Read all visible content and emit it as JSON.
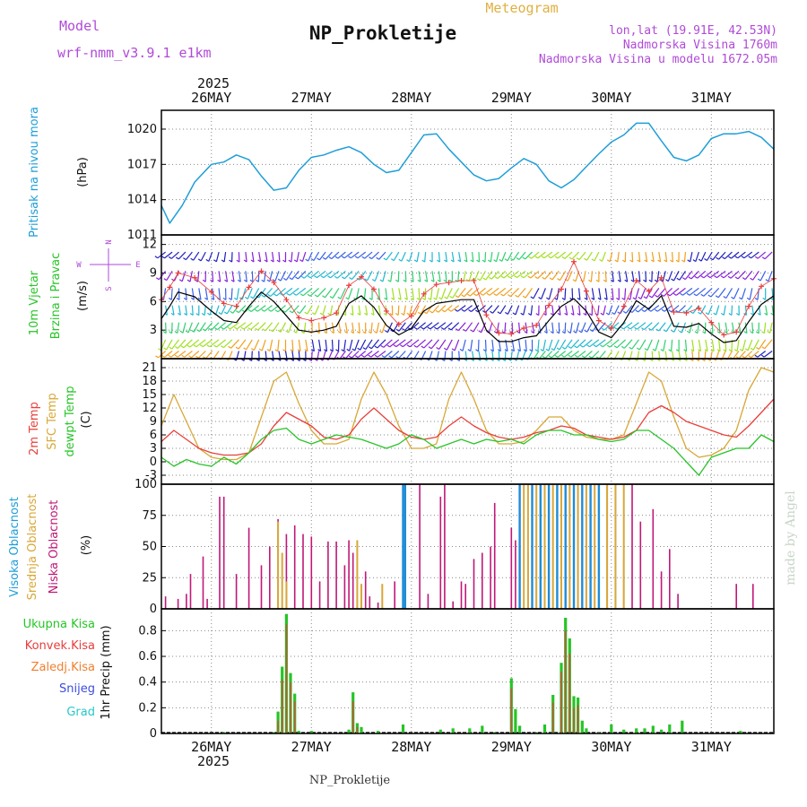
{
  "header": {
    "model_label": "Model",
    "model_name": "wrf-nmm_v3.9.1  e1km",
    "title": "NP_Prokletije",
    "meteogram": "Meteogram",
    "lonlat": "lon,lat (19.91E, 42.53N)",
    "elevation": "Nadmorska Visina 1760m",
    "model_elevation": "Nadmorska Visina u modelu 1672.05m",
    "footer": "NP_Prokletije",
    "credit": "made by Angel"
  },
  "colors": {
    "pressure": "#1e9ed8",
    "temp2m": "#e8403a",
    "sfc": "#d8a838",
    "dewpt": "#28c428",
    "high_cloud": "#1e8cd8",
    "mid_cloud": "#d8a838",
    "low_cloud": "#c01878",
    "precip": "#26c426",
    "conv": "#e83c3c",
    "wind_speed": "#000000",
    "gust": "#e83c3c"
  },
  "x_axis": {
    "year": "2025",
    "days": [
      "26MAY",
      "27MAY",
      "28MAY",
      "29MAY",
      "30MAY",
      "31MAY"
    ],
    "range_hours": [
      -12,
      135
    ]
  },
  "chart_data": [
    {
      "type": "line",
      "panel": "pressure",
      "labels": [
        "Pritisak na nivou mora",
        "(hPa)"
      ],
      "yticks": [
        1011,
        1014,
        1017,
        1020
      ],
      "ylim": [
        1011,
        1021.6
      ],
      "series": [
        {
          "x": [
            -12,
            -10,
            -7,
            -4,
            0,
            3,
            6,
            9,
            12,
            15,
            18,
            21,
            24,
            27,
            30,
            33,
            36,
            39,
            42,
            45,
            48,
            51,
            54,
            57,
            60,
            63,
            66,
            69,
            72,
            75,
            78,
            81,
            84,
            87,
            90,
            93,
            96,
            99,
            102,
            105,
            108,
            111,
            114,
            117,
            120,
            123,
            126,
            129,
            132,
            135
          ],
          "y": [
            1013.5,
            1012,
            1013.5,
            1015.5,
            1017,
            1017.2,
            1017.8,
            1017.4,
            1016,
            1014.8,
            1015,
            1016.5,
            1017.6,
            1017.8,
            1018.2,
            1018.5,
            1018,
            1017,
            1016.3,
            1016.5,
            1018,
            1019.5,
            1019.6,
            1018.3,
            1017.2,
            1016.1,
            1015.6,
            1015.8,
            1016.7,
            1017.5,
            1017,
            1015.6,
            1015,
            1015.7,
            1016.8,
            1017.9,
            1018.9,
            1019.5,
            1020.5,
            1020.5,
            1019,
            1017.6,
            1017.3,
            1017.8,
            1019.2,
            1019.6,
            1019.6,
            1019.8,
            1019.3,
            1018.3
          ]
        }
      ]
    },
    {
      "type": "line",
      "panel": "wind",
      "labels": [
        "10m Vjetar",
        "Brzina i Pravac",
        "(m/s)"
      ],
      "compass": {
        "n": "N",
        "w": "W",
        "e": "E",
        "s": "S"
      },
      "yticks": [
        3,
        6,
        9,
        12
      ],
      "ylim": [
        0,
        13
      ],
      "series": [
        {
          "name": "speed",
          "x": [
            -12,
            -10,
            -8,
            -4,
            0,
            3,
            6,
            9,
            12,
            15,
            18,
            21,
            24,
            27,
            30,
            33,
            36,
            39,
            42,
            45,
            48,
            51,
            54,
            57,
            60,
            63,
            66,
            69,
            72,
            75,
            78,
            81,
            84,
            87,
            90,
            93,
            96,
            99,
            102,
            105,
            108,
            111,
            114,
            117,
            120,
            123,
            126,
            129,
            132,
            135
          ],
          "y": [
            4.2,
            5.5,
            7,
            6.5,
            5,
            4,
            3.8,
            5.5,
            7,
            6,
            4.5,
            3,
            2.8,
            3,
            3.4,
            5.8,
            6.6,
            5.4,
            3.5,
            2.5,
            3.2,
            5,
            5.8,
            6,
            6.2,
            6.2,
            3,
            1.8,
            1.8,
            2.2,
            2.4,
            4,
            5.5,
            6.3,
            5,
            2.8,
            2.2,
            3.8,
            6.1,
            5.2,
            6.6,
            3.4,
            3.3,
            3.7,
            2.6,
            1.7,
            1.9,
            3.9,
            5.7,
            6.6
          ]
        },
        {
          "name": "gust",
          "x": [
            -12,
            -10,
            -8,
            -4,
            0,
            3,
            6,
            9,
            12,
            15,
            18,
            21,
            24,
            27,
            30,
            33,
            36,
            39,
            42,
            45,
            48,
            51,
            54,
            57,
            60,
            63,
            66,
            69,
            72,
            75,
            78,
            81,
            84,
            87,
            90,
            93,
            96,
            99,
            102,
            105,
            108,
            111,
            114,
            117,
            120,
            123,
            126,
            129,
            132,
            135
          ],
          "y": [
            6.2,
            7.5,
            9,
            8.5,
            7,
            5.8,
            5.5,
            7.5,
            9.2,
            8,
            6.2,
            4.3,
            4,
            4.3,
            4.8,
            7.7,
            8.6,
            7.3,
            5,
            3.6,
            4.5,
            6.8,
            7.8,
            8,
            8.2,
            8.2,
            4.6,
            2.7,
            2.6,
            3.2,
            3.5,
            5.6,
            7.3,
            10.2,
            7.1,
            4,
            3.2,
            5.5,
            8.2,
            7.1,
            8.5,
            4.9,
            4.8,
            5.3,
            3.8,
            2.5,
            2.8,
            5.5,
            7.6,
            8.4
          ]
        }
      ]
    },
    {
      "type": "line",
      "panel": "temperature",
      "labels": [
        "2m Temp",
        "SFC Temp",
        "dewpt Temp",
        "(C)"
      ],
      "yticks": [
        -3,
        0,
        3,
        6,
        9,
        12,
        15,
        18,
        21
      ],
      "ylim": [
        -5,
        23
      ],
      "series": [
        {
          "name": "2m Temp",
          "x": [
            -12,
            -9,
            -6,
            -3,
            0,
            3,
            6,
            9,
            12,
            15,
            18,
            21,
            24,
            27,
            30,
            33,
            36,
            39,
            42,
            45,
            48,
            51,
            54,
            57,
            60,
            63,
            66,
            69,
            72,
            75,
            78,
            81,
            84,
            87,
            90,
            93,
            96,
            99,
            102,
            105,
            108,
            111,
            114,
            117,
            120,
            123,
            126,
            129,
            132,
            135
          ],
          "y": [
            4.5,
            7,
            5,
            3,
            2,
            1.5,
            1.5,
            2,
            4,
            8,
            11,
            9.5,
            8,
            5.5,
            5,
            6,
            9.5,
            12,
            9.5,
            7,
            5.5,
            5,
            5.5,
            8,
            10,
            8,
            6.5,
            5.5,
            5,
            5.5,
            6.5,
            7,
            8,
            7.5,
            6,
            5.5,
            5,
            5.5,
            7,
            11,
            12.5,
            11,
            9,
            8,
            7,
            6,
            5.5,
            8,
            11,
            14
          ]
        },
        {
          "name": "SFC Temp",
          "x": [
            -12,
            -9,
            -6,
            -3,
            0,
            3,
            6,
            9,
            12,
            15,
            18,
            21,
            24,
            27,
            30,
            33,
            36,
            39,
            42,
            45,
            48,
            51,
            54,
            57,
            60,
            63,
            66,
            69,
            72,
            75,
            78,
            81,
            84,
            87,
            90,
            93,
            96,
            99,
            102,
            105,
            108,
            111,
            114,
            117,
            120,
            123,
            126,
            129,
            132,
            135
          ],
          "y": [
            8,
            15,
            9,
            3,
            1,
            0.5,
            0.5,
            2,
            10,
            18,
            20,
            13,
            7,
            4,
            4,
            5,
            14,
            20,
            15,
            8,
            3,
            3,
            4,
            14,
            20,
            14,
            7,
            4,
            4,
            4.5,
            7,
            10,
            10,
            7,
            5.5,
            5,
            5,
            6,
            13,
            20,
            18,
            10,
            3,
            1,
            1.5,
            3,
            7,
            16,
            21,
            20
          ]
        },
        {
          "name": "dewpt Temp",
          "x": [
            -12,
            -9,
            -6,
            -3,
            0,
            3,
            6,
            9,
            12,
            15,
            18,
            21,
            24,
            27,
            30,
            33,
            36,
            39,
            42,
            45,
            48,
            51,
            54,
            57,
            60,
            63,
            66,
            69,
            72,
            75,
            78,
            81,
            84,
            87,
            90,
            93,
            96,
            99,
            102,
            105,
            108,
            111,
            114,
            117,
            120,
            123,
            126,
            129,
            132,
            135
          ],
          "y": [
            1,
            -1,
            0.5,
            -0.5,
            -1,
            1,
            -0.5,
            2,
            5,
            7,
            7.5,
            5,
            4,
            5,
            6,
            5.5,
            5,
            4,
            3,
            4,
            6,
            5,
            3,
            4,
            5,
            4,
            5,
            4.5,
            5,
            4,
            6,
            7,
            7,
            6,
            6,
            5,
            4.5,
            5,
            7,
            7,
            5,
            3,
            0,
            -3,
            1,
            2,
            3,
            3,
            6,
            4.5
          ]
        }
      ]
    },
    {
      "type": "bar",
      "panel": "cloud",
      "labels": [
        "Visoka Oblacnost",
        "Srednja Oblacnost",
        "Niska Oblacnost",
        "(%)"
      ],
      "yticks": [
        0,
        25,
        50,
        75,
        100
      ],
      "ylim": [
        0,
        100
      ],
      "series": [
        {
          "name": "Niska Oblacnost",
          "x": [
            -11,
            -8,
            -6,
            -5,
            -2,
            -1,
            2,
            3,
            6,
            9,
            12,
            14,
            16,
            18,
            20,
            22,
            24,
            26,
            28,
            30,
            32,
            33,
            34,
            37,
            38,
            40,
            44,
            46,
            50,
            52,
            55,
            56,
            58,
            60,
            61,
            63,
            65,
            67,
            68,
            72,
            73,
            74,
            76,
            77,
            78,
            80,
            82,
            84,
            86,
            88,
            89,
            91,
            93,
            95,
            97,
            99,
            101,
            103,
            106,
            108,
            110,
            112,
            114,
            116,
            126,
            130,
            133
          ],
          "y": [
            10,
            8,
            12,
            28,
            42,
            8,
            90,
            90,
            28,
            65,
            35,
            50,
            72,
            60,
            67,
            60,
            58,
            22,
            54,
            54,
            35,
            55,
            45,
            30,
            10,
            5,
            22,
            66,
            100,
            12,
            90,
            100,
            6,
            22,
            20,
            40,
            45,
            50,
            85,
            65,
            55,
            75,
            45,
            30,
            70,
            70,
            100,
            100,
            100,
            100,
            95,
            100,
            100,
            100,
            100,
            40,
            100,
            70,
            80,
            30,
            48,
            12,
            0,
            0,
            20,
            20,
            0
          ]
        },
        {
          "name": "Srednja Oblacnost",
          "x": [
            16,
            17,
            18,
            35,
            36,
            41,
            59,
            75,
            76,
            78,
            80,
            82,
            84,
            86,
            88,
            90,
            92,
            95,
            97,
            99
          ],
          "y": [
            70,
            45,
            22,
            55,
            20,
            20,
            0,
            100,
            100,
            100,
            100,
            100,
            100,
            100,
            100,
            100,
            100,
            100,
            100,
            100
          ]
        },
        {
          "name": "Visoka Oblacnost",
          "x": [
            46,
            46.5,
            74,
            77,
            79,
            81,
            83,
            85,
            87,
            89,
            91,
            93
          ],
          "y": [
            100,
            100,
            100,
            100,
            100,
            100,
            100,
            100,
            100,
            100,
            100,
            100
          ]
        }
      ]
    },
    {
      "type": "bar",
      "panel": "precip",
      "labels": [
        "1hr Precip (mm)"
      ],
      "legend": [
        "Ukupna Kisa",
        "Konvek.Kisa",
        "Zaledj.Kisa",
        "Snijeg",
        "Grad"
      ],
      "yticks": [
        0,
        0.2,
        0.4,
        0.6,
        0.8
      ],
      "ylim": [
        0,
        0.97
      ],
      "series": [
        {
          "name": "Ukupna Kisa",
          "x": [
            3,
            15,
            16,
            17,
            18,
            19,
            20,
            21,
            24,
            33,
            34,
            35,
            36,
            40,
            46,
            55,
            58,
            62,
            65,
            68,
            72,
            73,
            74,
            78,
            80,
            82,
            84,
            85,
            86,
            87,
            88,
            89,
            90,
            93,
            96,
            99,
            102,
            104,
            106,
            108,
            110,
            113,
            127
          ],
          "y": [
            0.01,
            0.01,
            0.17,
            0.52,
            0.93,
            0.47,
            0.31,
            0.02,
            0.02,
            0.03,
            0.32,
            0.08,
            0.05,
            0.02,
            0.07,
            0.03,
            0.04,
            0.04,
            0.06,
            0.01,
            0.43,
            0.19,
            0.06,
            0.01,
            0.07,
            0.3,
            0.55,
            0.9,
            0.74,
            0.29,
            0.28,
            0.1,
            0.04,
            0.01,
            0.07,
            0.03,
            0.04,
            0.04,
            0.06,
            0.03,
            0.07,
            0.1,
            0.02
          ]
        },
        {
          "name": "Konvek.Kisa",
          "x": [
            16,
            17,
            18,
            19,
            20,
            34,
            35,
            72,
            82,
            84,
            85,
            86,
            87,
            88
          ],
          "y": [
            0.1,
            0.42,
            0.85,
            0.4,
            0.25,
            0.25,
            0.05,
            0.35,
            0.24,
            0.48,
            0.8,
            0.62,
            0.2,
            0.22
          ]
        }
      ]
    }
  ]
}
